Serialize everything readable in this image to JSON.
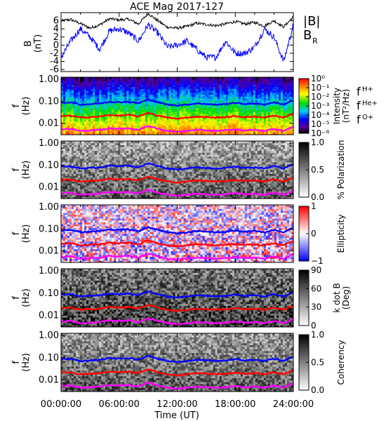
{
  "chart_data": {
    "type": "heatmap",
    "title": "ACE Mag 2017-127",
    "xlabel": "Time (UT)",
    "xticks": [
      "00:00:00",
      "06:00:00",
      "12:00:00",
      "18:00:00",
      "24:00:00"
    ],
    "xlim_hours": [
      0,
      24
    ],
    "colors": {
      "B_total": "#000000",
      "B_R": "#0000ff",
      "f_H": "#0000ff",
      "f_He": "#ff0000",
      "f_O": "#ff00ff"
    },
    "panels": [
      {
        "id": "field",
        "type": "line",
        "ylabel": [
          "B",
          "(nT)"
        ],
        "yticks": [
          "6",
          "4",
          "2",
          "0",
          "-2",
          "-4",
          "-6"
        ],
        "ylim": [
          -6.5,
          8
        ],
        "legend": [
          {
            "text": "|B|",
            "color": "#000000"
          },
          {
            "text": "B",
            "sub": "R",
            "color": "#0000ff"
          }
        ],
        "series": [
          {
            "name": "|B|",
            "color": "#000000",
            "x": [
              0,
              1,
              2,
              3,
              4,
              5,
              6,
              7,
              8,
              9,
              10,
              11,
              12,
              13,
              14,
              15,
              16,
              17,
              18,
              19,
              20,
              21,
              22,
              23,
              24
            ],
            "values": [
              6,
              6.3,
              5.3,
              4.2,
              5,
              6.5,
              6.2,
              6.4,
              5.2,
              7.8,
              6,
              4.4,
              4.2,
              4.6,
              5.4,
              5.1,
              4.8,
              5.2,
              5.8,
              5.2,
              5.6,
              4.7,
              6,
              4.5,
              7
            ]
          },
          {
            "name": "B_R",
            "color": "#0000ff",
            "x": [
              0,
              1,
              2,
              3,
              4,
              5,
              6,
              7,
              8,
              9,
              10,
              11,
              12,
              13,
              14,
              15,
              16,
              17,
              18,
              19,
              20,
              21,
              22,
              23,
              24
            ],
            "values": [
              -3,
              1,
              4,
              2,
              -1,
              3.5,
              4,
              3,
              1,
              5,
              3,
              -0.5,
              0,
              1,
              -1,
              -3,
              -3,
              1,
              -2,
              -2,
              -0.5,
              4,
              2,
              -4,
              5
            ]
          }
        ]
      },
      {
        "id": "intensity",
        "type": "heatmap",
        "ylabel": [
          "f",
          "(Hz)"
        ],
        "yticks": [
          "1.00",
          "0.10",
          "0.01"
        ],
        "colorbar": {
          "scale": "rainbow",
          "label": [
            "Intensity",
            "(nT²/Hz)"
          ],
          "ticks": [
            "10⁰",
            "10⁻¹",
            "10⁻²",
            "10⁻³",
            "10⁻⁴",
            "10⁻⁵",
            "10⁻⁶"
          ]
        },
        "legend": [
          {
            "text": "f",
            "sub": "H+",
            "color": "#0000ff"
          },
          {
            "text": "f",
            "sub": "He+",
            "color": "#ff0000"
          },
          {
            "text": "f",
            "sub": "O+",
            "color": "#ff00ff"
          }
        ]
      },
      {
        "id": "polarization",
        "type": "heatmap",
        "ylabel": [
          "f",
          "(Hz)"
        ],
        "yticks": [
          "1.00",
          "0.10",
          "0.01"
        ],
        "colorbar": {
          "scale": "gray",
          "label": [
            "% Polarization"
          ],
          "ticks": [
            "1.0",
            "0.5",
            "0.0"
          ]
        }
      },
      {
        "id": "ellipticity",
        "type": "heatmap",
        "ylabel": [
          "f",
          "(Hz)"
        ],
        "yticks": [
          "1.00",
          "0.10",
          "0.01"
        ],
        "colorbar": {
          "scale": "bwr",
          "label": [
            "Ellipticity"
          ],
          "ticks": [
            "1",
            "0",
            "−1"
          ]
        }
      },
      {
        "id": "kdotb",
        "type": "heatmap",
        "ylabel": [
          "f",
          "(Hz)"
        ],
        "yticks": [
          "1.00",
          "0.10",
          "0.01"
        ],
        "colorbar": {
          "scale": "gray",
          "label": [
            "k dot B",
            "(Deg)"
          ],
          "ticks": [
            "90",
            "60",
            "30",
            "0"
          ]
        }
      },
      {
        "id": "coherency",
        "type": "heatmap",
        "ylabel": [
          "f",
          "(Hz)"
        ],
        "yticks": [
          "1.00",
          "0.10",
          "0.01"
        ],
        "colorbar": {
          "scale": "gray",
          "label": [
            "Coherency"
          ],
          "ticks": [
            "1.0",
            "0.5",
            "0.0"
          ]
        }
      }
    ],
    "gyrofrequency_lines": {
      "x": [
        0,
        1,
        2,
        3,
        4,
        5,
        6,
        7,
        8,
        9,
        10,
        11,
        12,
        13,
        14,
        15,
        16,
        17,
        18,
        19,
        20,
        21,
        22,
        23,
        24
      ],
      "f_H_Hz": [
        0.085,
        0.09,
        0.07,
        0.075,
        0.08,
        0.095,
        0.09,
        0.095,
        0.08,
        0.12,
        0.09,
        0.07,
        0.065,
        0.07,
        0.08,
        0.075,
        0.07,
        0.075,
        0.085,
        0.075,
        0.08,
        0.07,
        0.09,
        0.07,
        0.11
      ],
      "f_He_Hz": [
        0.021,
        0.022,
        0.018,
        0.019,
        0.02,
        0.024,
        0.022,
        0.024,
        0.02,
        0.03,
        0.022,
        0.018,
        0.016,
        0.018,
        0.02,
        0.019,
        0.018,
        0.019,
        0.021,
        0.019,
        0.02,
        0.018,
        0.022,
        0.018,
        0.027
      ],
      "f_O_Hz": [
        0.0053,
        0.0056,
        0.0044,
        0.0047,
        0.005,
        0.0059,
        0.0056,
        0.0059,
        0.005,
        0.0075,
        0.0056,
        0.0044,
        0.0041,
        0.0044,
        0.005,
        0.0047,
        0.0044,
        0.0047,
        0.0053,
        0.0047,
        0.005,
        0.0044,
        0.0056,
        0.0044,
        0.0069
      ]
    }
  }
}
